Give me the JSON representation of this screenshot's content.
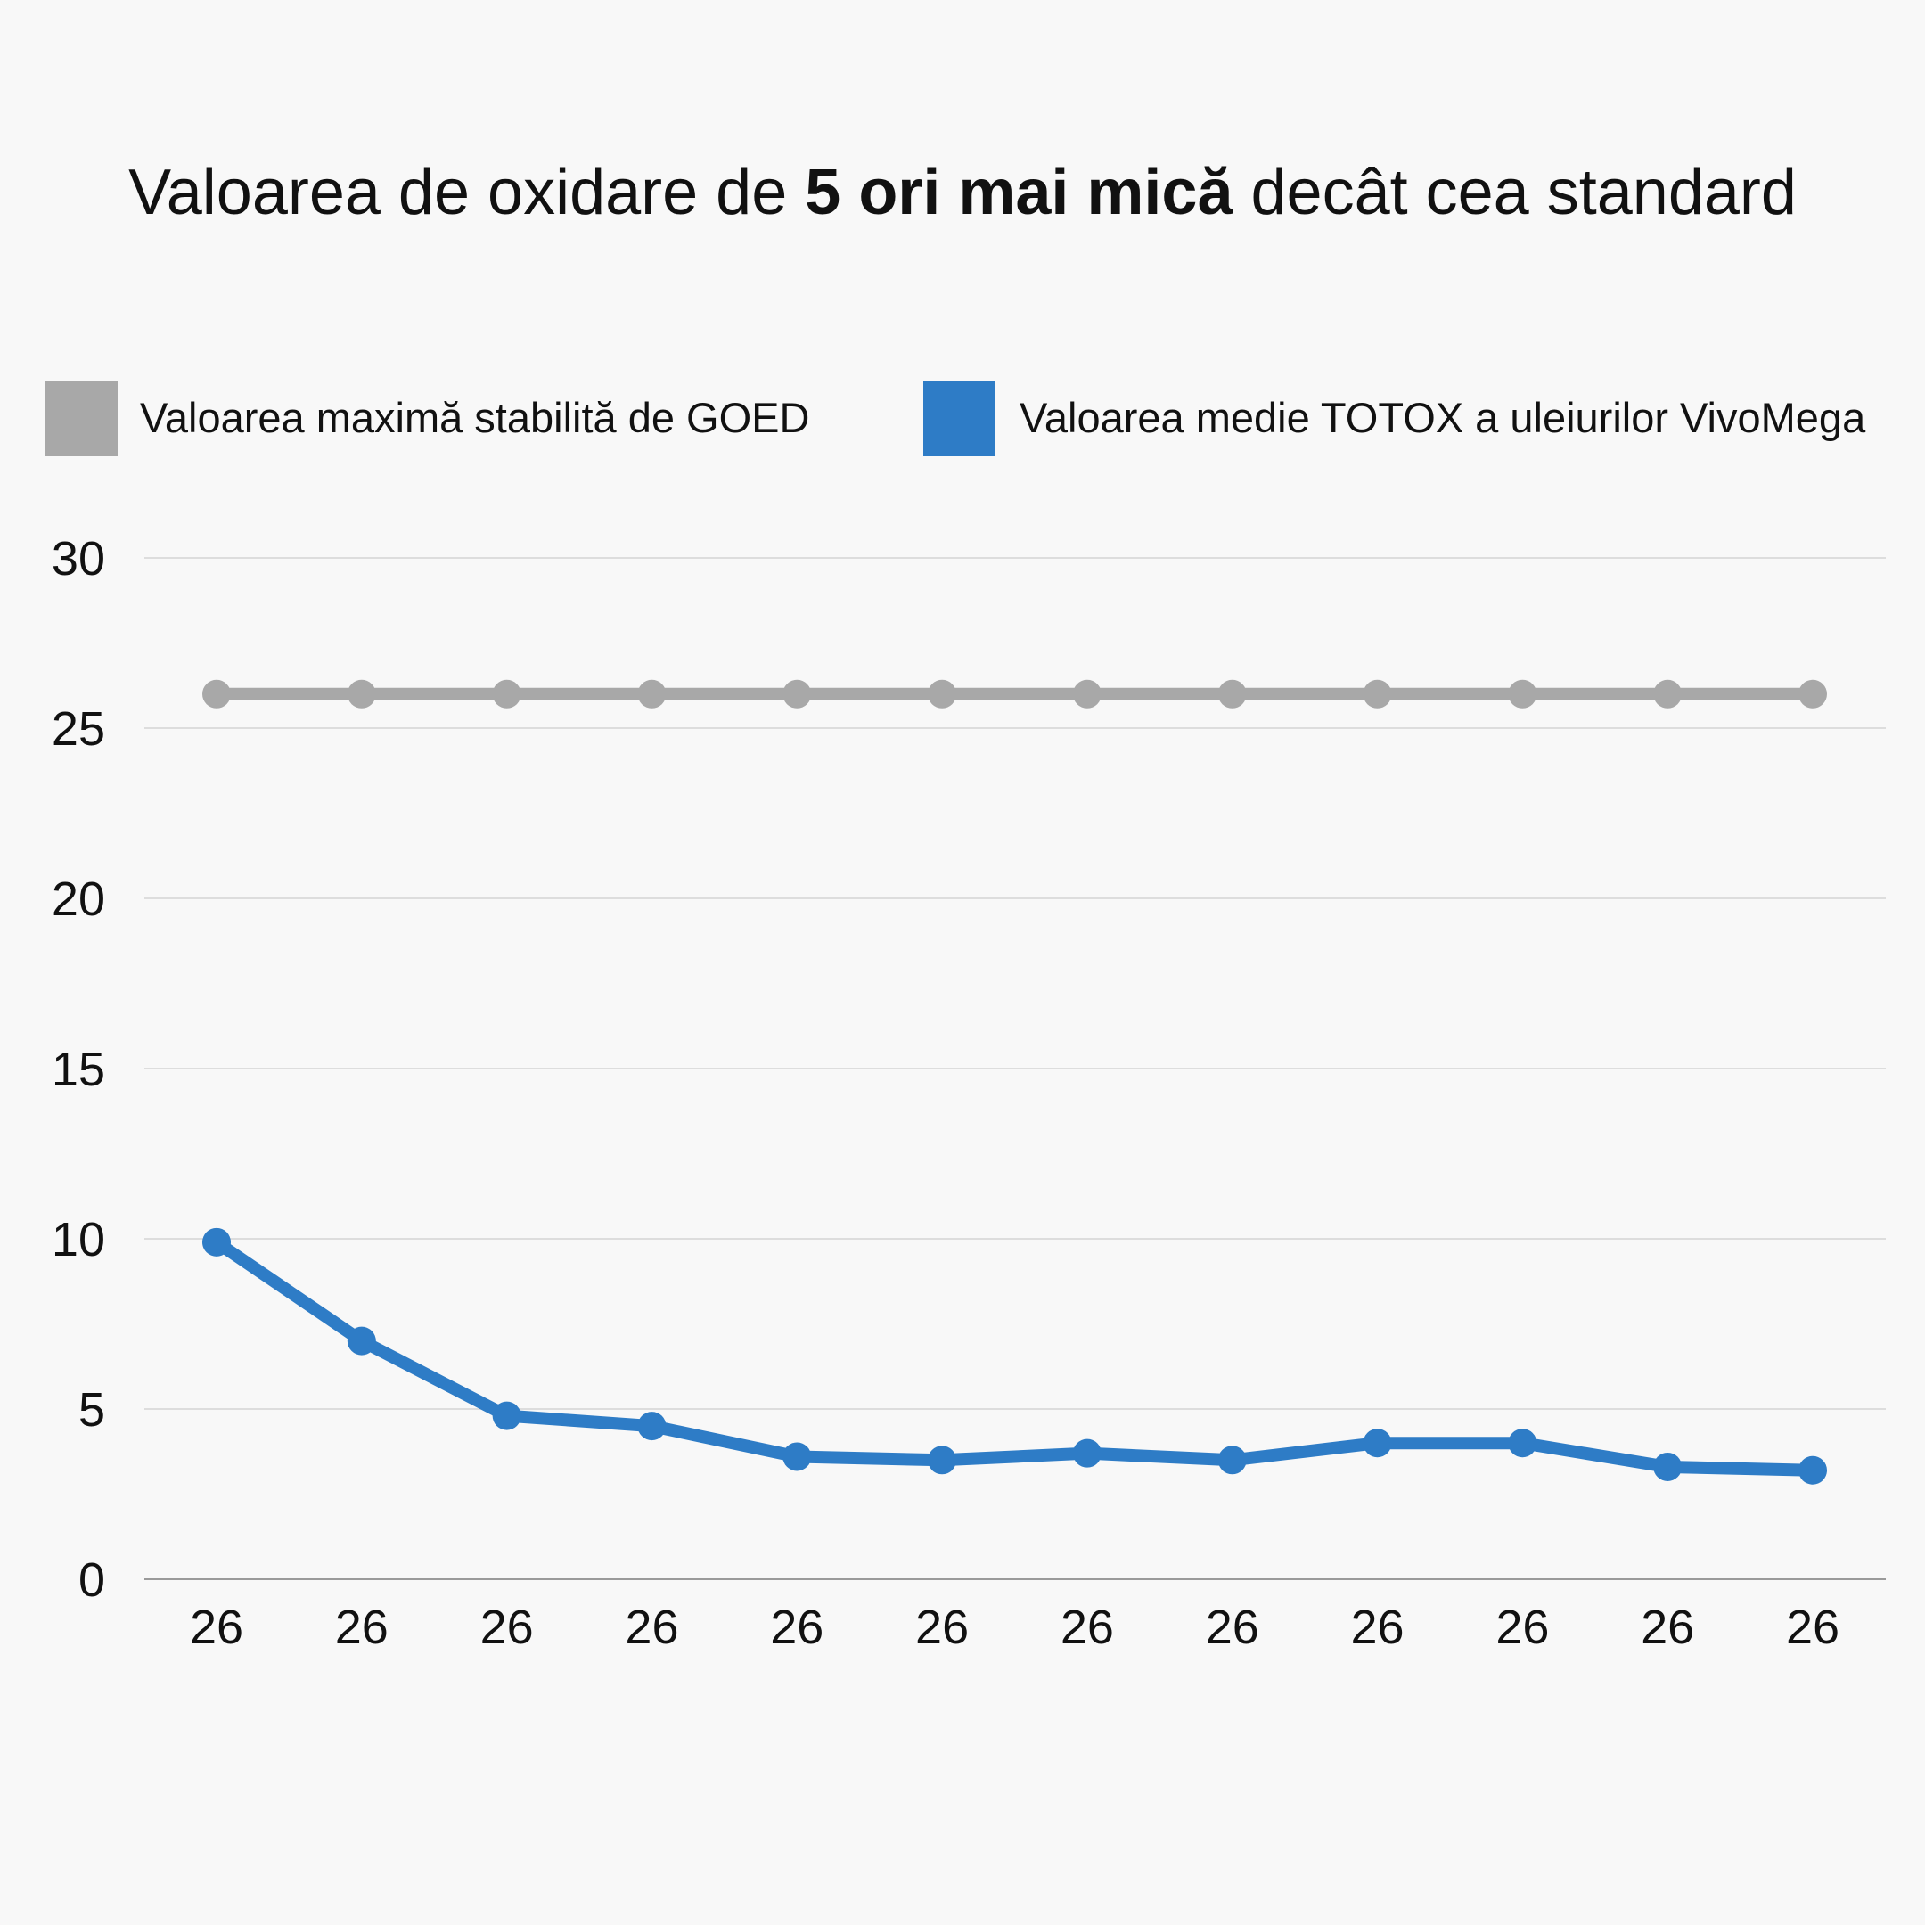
{
  "chart_data": {
    "type": "line",
    "title": {
      "prefix": "Valoarea de oxidare de ",
      "bold": "5 ori mai mică",
      "suffix": " decât cea standard"
    },
    "xlabel": "",
    "ylabel": "",
    "ylim": [
      0,
      30
    ],
    "yticks": [
      "0",
      "5",
      "10",
      "15",
      "20",
      "25",
      "30"
    ],
    "categories": [
      "26",
      "26",
      "26",
      "26",
      "26",
      "26",
      "26",
      "26",
      "26",
      "26",
      "26",
      "26"
    ],
    "grid": true,
    "legend_position": "top",
    "series": [
      {
        "name": "Valoarea maximă stabilită de GOED",
        "color": "#a8a8a8",
        "values": [
          26,
          26,
          26,
          26,
          26,
          26,
          26,
          26,
          26,
          26,
          26,
          26
        ]
      },
      {
        "name": "Valoarea medie TOTOX a uleiurilor VivoMega",
        "color": "#2e7cc6",
        "values": [
          9.9,
          7.0,
          4.8,
          4.5,
          3.6,
          3.5,
          3.7,
          3.5,
          4.0,
          4.0,
          3.3,
          3.2
        ]
      }
    ]
  }
}
